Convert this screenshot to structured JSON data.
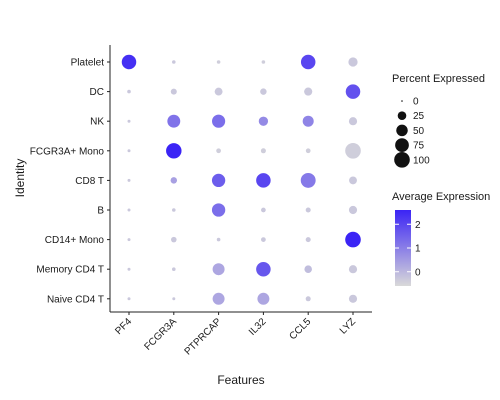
{
  "chart_data": {
    "type": "dot",
    "xlabel": "Features",
    "ylabel": "Identity",
    "features": [
      "PF4",
      "FCGR3A",
      "PTPRCAP",
      "IL32",
      "CCL5",
      "LYZ"
    ],
    "identities": [
      "Platelet",
      "DC",
      "NK",
      "FCGR3A+ Mono",
      "CD8 T",
      "B",
      "CD14+ Mono",
      "Memory CD4 T",
      "Naive CD4 T"
    ],
    "points": [
      {
        "identity": "Platelet",
        "feature": "PF4",
        "pct": 85,
        "avg": 2.4
      },
      {
        "identity": "Platelet",
        "feature": "FCGR3A",
        "pct": 2,
        "avg": -0.3
      },
      {
        "identity": "Platelet",
        "feature": "PTPRCAP",
        "pct": 2,
        "avg": -0.4
      },
      {
        "identity": "Platelet",
        "feature": "IL32",
        "pct": 2,
        "avg": -0.4
      },
      {
        "identity": "Platelet",
        "feature": "CCL5",
        "pct": 85,
        "avg": 2.0
      },
      {
        "identity": "Platelet",
        "feature": "LYZ",
        "pct": 30,
        "avg": -0.3
      },
      {
        "identity": "DC",
        "feature": "PF4",
        "pct": 2,
        "avg": -0.3
      },
      {
        "identity": "DC",
        "feature": "FCGR3A",
        "pct": 10,
        "avg": -0.3
      },
      {
        "identity": "DC",
        "feature": "PTPRCAP",
        "pct": 20,
        "avg": -0.3
      },
      {
        "identity": "DC",
        "feature": "IL32",
        "pct": 12,
        "avg": -0.3
      },
      {
        "identity": "DC",
        "feature": "CCL5",
        "pct": 22,
        "avg": -0.3
      },
      {
        "identity": "DC",
        "feature": "LYZ",
        "pct": 85,
        "avg": 1.8
      },
      {
        "identity": "NK",
        "feature": "PF4",
        "pct": 1,
        "avg": -0.3
      },
      {
        "identity": "NK",
        "feature": "FCGR3A",
        "pct": 65,
        "avg": 1.2
      },
      {
        "identity": "NK",
        "feature": "PTPRCAP",
        "pct": 68,
        "avg": 1.3
      },
      {
        "identity": "NK",
        "feature": "IL32",
        "pct": 30,
        "avg": 0.8
      },
      {
        "identity": "NK",
        "feature": "CCL5",
        "pct": 45,
        "avg": 0.9
      },
      {
        "identity": "NK",
        "feature": "LYZ",
        "pct": 22,
        "avg": -0.3
      },
      {
        "identity": "FCGR3A+ Mono",
        "feature": "PF4",
        "pct": 1,
        "avg": -0.3
      },
      {
        "identity": "FCGR3A+ Mono",
        "feature": "FCGR3A",
        "pct": 98,
        "avg": 2.6
      },
      {
        "identity": "FCGR3A+ Mono",
        "feature": "PTPRCAP",
        "pct": 5,
        "avg": -0.4
      },
      {
        "identity": "FCGR3A+ Mono",
        "feature": "IL32",
        "pct": 6,
        "avg": -0.4
      },
      {
        "identity": "FCGR3A+ Mono",
        "feature": "CCL5",
        "pct": 5,
        "avg": -0.4
      },
      {
        "identity": "FCGR3A+ Mono",
        "feature": "LYZ",
        "pct": 100,
        "avg": -0.4
      },
      {
        "identity": "CD8 T",
        "feature": "PF4",
        "pct": 1,
        "avg": -0.3
      },
      {
        "identity": "CD8 T",
        "feature": "FCGR3A",
        "pct": 12,
        "avg": 0.4
      },
      {
        "identity": "CD8 T",
        "feature": "PTPRCAP",
        "pct": 70,
        "avg": 1.6
      },
      {
        "identity": "CD8 T",
        "feature": "IL32",
        "pct": 85,
        "avg": 2.0
      },
      {
        "identity": "CD8 T",
        "feature": "CCL5",
        "pct": 90,
        "avg": 1.1
      },
      {
        "identity": "CD8 T",
        "feature": "LYZ",
        "pct": 20,
        "avg": -0.3
      },
      {
        "identity": "B",
        "feature": "PF4",
        "pct": 1,
        "avg": -0.3
      },
      {
        "identity": "B",
        "feature": "FCGR3A",
        "pct": 2,
        "avg": -0.3
      },
      {
        "identity": "B",
        "feature": "PTPRCAP",
        "pct": 70,
        "avg": 1.3
      },
      {
        "identity": "B",
        "feature": "IL32",
        "pct": 5,
        "avg": -0.3
      },
      {
        "identity": "B",
        "feature": "CCL5",
        "pct": 6,
        "avg": -0.3
      },
      {
        "identity": "B",
        "feature": "LYZ",
        "pct": 22,
        "avg": -0.3
      },
      {
        "identity": "CD14+ Mono",
        "feature": "PF4",
        "pct": 1,
        "avg": -0.3
      },
      {
        "identity": "CD14+ Mono",
        "feature": "FCGR3A",
        "pct": 8,
        "avg": -0.3
      },
      {
        "identity": "CD14+ Mono",
        "feature": "PTPRCAP",
        "pct": 2,
        "avg": -0.3
      },
      {
        "identity": "CD14+ Mono",
        "feature": "IL32",
        "pct": 5,
        "avg": -0.3
      },
      {
        "identity": "CD14+ Mono",
        "feature": "CCL5",
        "pct": 6,
        "avg": -0.3
      },
      {
        "identity": "CD14+ Mono",
        "feature": "LYZ",
        "pct": 100,
        "avg": 2.6
      },
      {
        "identity": "Memory CD4 T",
        "feature": "PF4",
        "pct": 1,
        "avg": -0.3
      },
      {
        "identity": "Memory CD4 T",
        "feature": "FCGR3A",
        "pct": 2,
        "avg": -0.3
      },
      {
        "identity": "Memory CD4 T",
        "feature": "PTPRCAP",
        "pct": 55,
        "avg": 0.3
      },
      {
        "identity": "Memory CD4 T",
        "feature": "IL32",
        "pct": 85,
        "avg": 1.7
      },
      {
        "identity": "Memory CD4 T",
        "feature": "CCL5",
        "pct": 18,
        "avg": -0.1
      },
      {
        "identity": "Memory CD4 T",
        "feature": "LYZ",
        "pct": 22,
        "avg": -0.3
      },
      {
        "identity": "Naive CD4 T",
        "feature": "PF4",
        "pct": 1,
        "avg": -0.3
      },
      {
        "identity": "Naive CD4 T",
        "feature": "FCGR3A",
        "pct": 1,
        "avg": -0.3
      },
      {
        "identity": "Naive CD4 T",
        "feature": "PTPRCAP",
        "pct": 55,
        "avg": 0.3
      },
      {
        "identity": "Naive CD4 T",
        "feature": "IL32",
        "pct": 55,
        "avg": 0.3
      },
      {
        "identity": "Naive CD4 T",
        "feature": "CCL5",
        "pct": 6,
        "avg": -0.3
      },
      {
        "identity": "Naive CD4 T",
        "feature": "LYZ",
        "pct": 22,
        "avg": -0.3
      }
    ],
    "size_legend": {
      "title": "Percent Expressed",
      "values": [
        0,
        25,
        50,
        75,
        100
      ],
      "labels": [
        "0",
        "25",
        "50",
        "75",
        "100"
      ]
    },
    "color_legend": {
      "title": "Average Expression",
      "range": [
        -0.6,
        2.6
      ],
      "ticks": [
        0,
        1,
        2
      ],
      "tick_labels": [
        "0",
        "1",
        "2"
      ],
      "low_color": "#d9d9d9",
      "high_color": "#3b24f5"
    },
    "grid": false,
    "legend_position": "right"
  }
}
